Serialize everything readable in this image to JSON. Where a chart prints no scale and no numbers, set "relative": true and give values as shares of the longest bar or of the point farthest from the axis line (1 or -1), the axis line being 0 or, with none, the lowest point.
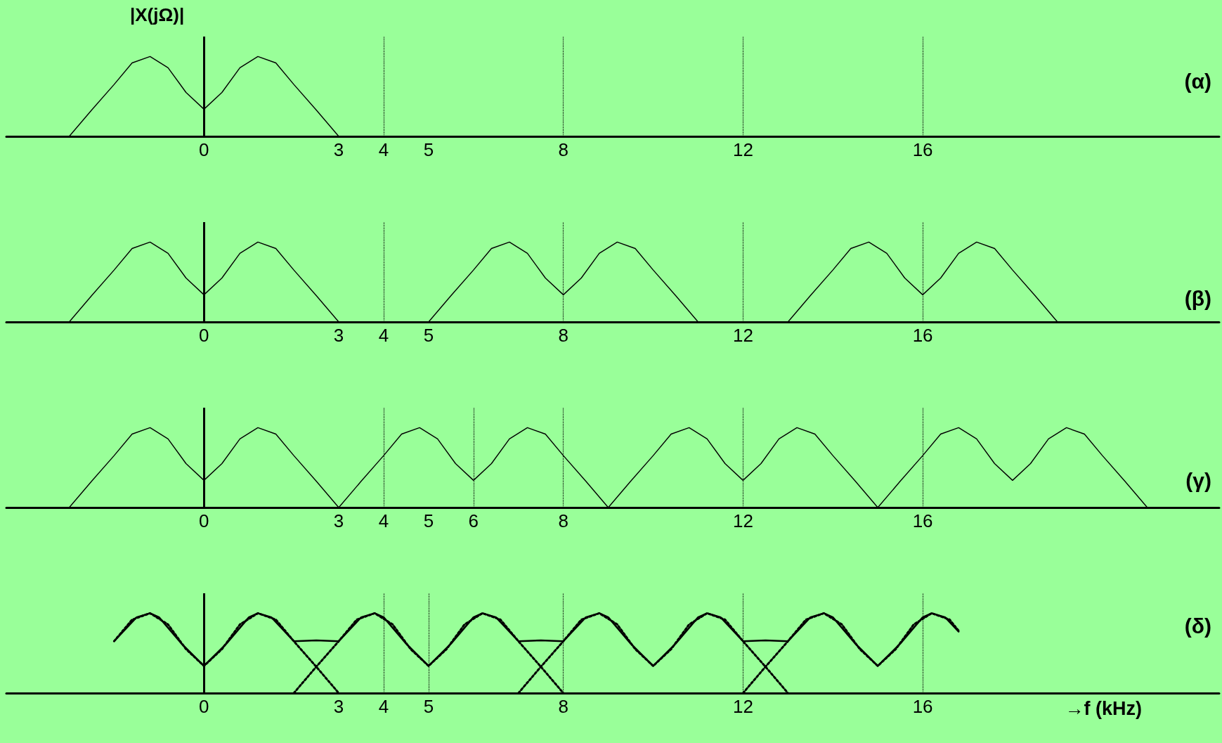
{
  "chart_data": [
    {
      "type": "line",
      "title": "(α)",
      "ylabel": "|X(jΩ)|",
      "relative": true,
      "marker": "none",
      "xlim": [
        -4.4,
        22.6
      ],
      "xticks": [
        0,
        3,
        4,
        5,
        8,
        12,
        16
      ],
      "ref_lines": [
        {
          "axis": "x",
          "value": 0,
          "line_style": "solid",
          "color": "#000000"
        },
        {
          "axis": "x",
          "value": 4,
          "line_style": "dotted",
          "color": "#000000"
        },
        {
          "axis": "x",
          "value": 8,
          "line_style": "dotted",
          "color": "#000000"
        },
        {
          "axis": "x",
          "value": 12,
          "line_style": "dotted",
          "color": "#000000"
        },
        {
          "axis": "x",
          "value": 16,
          "line_style": "dotted",
          "color": "#000000"
        }
      ],
      "series": [
        {
          "color": "#000000",
          "line_style": "solid",
          "x": [
            -3,
            -2.5,
            -2,
            -1.6,
            -1.2,
            -0.8,
            -0.4,
            0,
            0.4,
            0.8,
            1.2,
            1.6,
            2,
            2.5,
            3
          ],
          "values": [
            0,
            0.33,
            0.65,
            0.92,
            1,
            0.86,
            0.55,
            0.34,
            0.55,
            0.86,
            1,
            0.92,
            0.65,
            0.33,
            0
          ]
        }
      ]
    },
    {
      "type": "line",
      "title": "(β)",
      "relative": true,
      "marker": "none",
      "xlim": [
        -4.4,
        22.6
      ],
      "xticks": [
        0,
        3,
        4,
        5,
        8,
        12,
        16
      ],
      "ref_lines": [
        {
          "axis": "x",
          "value": 0,
          "line_style": "solid",
          "color": "#000000"
        },
        {
          "axis": "x",
          "value": 4,
          "line_style": "dotted",
          "color": "#000000"
        },
        {
          "axis": "x",
          "value": 8,
          "line_style": "dotted",
          "color": "#000000"
        },
        {
          "axis": "x",
          "value": 12,
          "line_style": "dotted",
          "color": "#000000"
        },
        {
          "axis": "x",
          "value": 16,
          "line_style": "dotted",
          "color": "#000000"
        }
      ],
      "series": [
        {
          "color": "#000000",
          "line_style": "solid",
          "x": [
            -3,
            -2.5,
            -2,
            -1.6,
            -1.2,
            -0.8,
            -0.4,
            0,
            0.4,
            0.8,
            1.2,
            1.6,
            2,
            2.5,
            3
          ],
          "values": [
            0,
            0.33,
            0.65,
            0.92,
            1,
            0.86,
            0.55,
            0.34,
            0.55,
            0.86,
            1,
            0.92,
            0.65,
            0.33,
            0
          ]
        },
        {
          "color": "#000000",
          "line_style": "solid",
          "x": [
            5,
            5.5,
            6,
            6.4,
            6.8,
            7.2,
            7.6,
            8,
            8.4,
            8.8,
            9.2,
            9.6,
            10,
            10.5,
            11
          ],
          "values": [
            0,
            0.33,
            0.65,
            0.92,
            1,
            0.86,
            0.55,
            0.34,
            0.55,
            0.86,
            1,
            0.92,
            0.65,
            0.33,
            0
          ]
        },
        {
          "color": "#000000",
          "line_style": "solid",
          "x": [
            13,
            13.5,
            14,
            14.4,
            14.8,
            15.2,
            15.6,
            16,
            16.4,
            16.8,
            17.2,
            17.6,
            18,
            18.5,
            19
          ],
          "values": [
            0,
            0.33,
            0.65,
            0.92,
            1,
            0.86,
            0.55,
            0.34,
            0.55,
            0.86,
            1,
            0.92,
            0.65,
            0.33,
            0
          ]
        }
      ]
    },
    {
      "type": "line",
      "title": "(γ)",
      "relative": true,
      "marker": "none",
      "xlim": [
        -4.4,
        22.6
      ],
      "xticks": [
        0,
        3,
        4,
        5,
        6,
        8,
        12,
        16
      ],
      "ref_lines": [
        {
          "axis": "x",
          "value": 0,
          "line_style": "solid",
          "color": "#000000"
        },
        {
          "axis": "x",
          "value": 4,
          "line_style": "dotted",
          "color": "#000000"
        },
        {
          "axis": "x",
          "value": 6,
          "line_style": "dotted",
          "color": "#000000"
        },
        {
          "axis": "x",
          "value": 8,
          "line_style": "dotted",
          "color": "#000000"
        },
        {
          "axis": "x",
          "value": 12,
          "line_style": "dotted",
          "color": "#000000"
        },
        {
          "axis": "x",
          "value": 16,
          "line_style": "dotted",
          "color": "#000000"
        }
      ],
      "series": [
        {
          "color": "#000000",
          "line_style": "solid",
          "x": [
            -3,
            -2.5,
            -2,
            -1.6,
            -1.2,
            -0.8,
            -0.4,
            0,
            0.4,
            0.8,
            1.2,
            1.6,
            2,
            2.5,
            3,
            3.5,
            4,
            4.4,
            4.8,
            5.2,
            5.6,
            6,
            6.4,
            6.8,
            7.2,
            7.6,
            8,
            8.5,
            9,
            9.5,
            10,
            10.4,
            10.8,
            11.2,
            11.6,
            12,
            12.4,
            12.8,
            13.2,
            13.6,
            14,
            14.5,
            15,
            15.5,
            16,
            16.4,
            16.8,
            17.2,
            17.6,
            18,
            18.4,
            18.8,
            19.2,
            19.6,
            20,
            20.5,
            21
          ],
          "values": [
            0,
            0.33,
            0.65,
            0.92,
            1,
            0.86,
            0.55,
            0.34,
            0.55,
            0.86,
            1,
            0.92,
            0.65,
            0.33,
            0,
            0.33,
            0.65,
            0.92,
            1,
            0.86,
            0.55,
            0.34,
            0.55,
            0.86,
            1,
            0.92,
            0.65,
            0.33,
            0,
            0.33,
            0.65,
            0.92,
            1,
            0.86,
            0.55,
            0.34,
            0.55,
            0.86,
            1,
            0.92,
            0.65,
            0.33,
            0,
            0.33,
            0.65,
            0.92,
            1,
            0.86,
            0.55,
            0.34,
            0.55,
            0.86,
            1,
            0.92,
            0.65,
            0.33,
            0
          ]
        }
      ]
    },
    {
      "type": "line",
      "title": "(δ)",
      "xlabel": "→f (kHz)",
      "relative": true,
      "marker": "none",
      "xlim": [
        -4.4,
        22.6
      ],
      "xticks": [
        0,
        3,
        4,
        5,
        8,
        12,
        16
      ],
      "ref_lines": [
        {
          "axis": "x",
          "value": 0,
          "line_style": "solid",
          "color": "#000000"
        },
        {
          "axis": "x",
          "value": 4,
          "line_style": "dotted",
          "color": "#000000"
        },
        {
          "axis": "x",
          "value": 5,
          "line_style": "dotted",
          "color": "#000000"
        },
        {
          "axis": "x",
          "value": 8,
          "line_style": "dotted",
          "color": "#000000"
        },
        {
          "axis": "x",
          "value": 12,
          "line_style": "dotted",
          "color": "#000000"
        },
        {
          "axis": "x",
          "value": 16,
          "line_style": "dotted",
          "color": "#000000"
        }
      ],
      "series": [
        {
          "color": "#000000",
          "line_style": "solid",
          "x": [
            -2,
            -1.5,
            -1.2,
            -1,
            -0.5,
            0,
            0.5,
            1,
            1.2,
            1.5,
            2,
            2.5,
            3,
            3.5,
            3.8,
            4,
            4.5,
            5,
            5.5,
            6,
            6.2,
            6.5,
            7,
            7.5,
            8,
            8.5,
            8.8,
            9,
            9.5,
            10,
            10.5,
            11,
            11.2,
            11.5,
            12,
            12.5,
            13,
            13.5,
            13.8,
            14,
            14.5,
            15,
            15.5,
            16,
            16.2,
            16.5,
            16.8
          ],
          "values": [
            0.65,
            0.95,
            1,
            0.95,
            0.62,
            0.34,
            0.62,
            0.95,
            1,
            0.95,
            0.65,
            0.66,
            0.65,
            0.95,
            1,
            0.95,
            0.62,
            0.34,
            0.62,
            0.95,
            1,
            0.95,
            0.65,
            0.66,
            0.65,
            0.95,
            1,
            0.95,
            0.62,
            0.34,
            0.62,
            0.95,
            1,
            0.95,
            0.65,
            0.66,
            0.65,
            0.95,
            1,
            0.95,
            0.62,
            0.34,
            0.62,
            0.95,
            1,
            0.95,
            0.77
          ]
        },
        {
          "color": "#000000",
          "line_style": "dotted",
          "x": [
            -2,
            -1.6,
            -1.2,
            -0.8,
            -0.4,
            0,
            0.4,
            0.8,
            1.2,
            1.6,
            2,
            2.5,
            3
          ],
          "values": [
            0.65,
            0.92,
            1,
            0.86,
            0.55,
            0.34,
            0.55,
            0.86,
            1,
            0.92,
            0.65,
            0.33,
            0
          ]
        },
        {
          "color": "#000000",
          "line_style": "dotted",
          "x": [
            2,
            2.5,
            3,
            3.4,
            3.8,
            4.2,
            4.6,
            5,
            5.4,
            5.8,
            6.2,
            6.6,
            7,
            7.5,
            8
          ],
          "values": [
            0,
            0.33,
            0.65,
            0.92,
            1,
            0.86,
            0.55,
            0.34,
            0.55,
            0.86,
            1,
            0.92,
            0.65,
            0.33,
            0
          ]
        },
        {
          "color": "#000000",
          "line_style": "dotted",
          "x": [
            7,
            7.5,
            8,
            8.4,
            8.8,
            9.2,
            9.6,
            10,
            10.4,
            10.8,
            11.2,
            11.6,
            12,
            12.5,
            13
          ],
          "values": [
            0,
            0.33,
            0.65,
            0.92,
            1,
            0.86,
            0.55,
            0.34,
            0.55,
            0.86,
            1,
            0.92,
            0.65,
            0.33,
            0
          ]
        },
        {
          "color": "#000000",
          "line_style": "dotted",
          "x": [
            12,
            12.5,
            13,
            13.4,
            13.8,
            14.2,
            14.6,
            15,
            15.4,
            15.8,
            16.2,
            16.6,
            16.8
          ],
          "values": [
            0,
            0.33,
            0.65,
            0.92,
            1,
            0.86,
            0.55,
            0.34,
            0.55,
            0.86,
            1,
            0.92,
            0.78
          ]
        }
      ]
    }
  ]
}
